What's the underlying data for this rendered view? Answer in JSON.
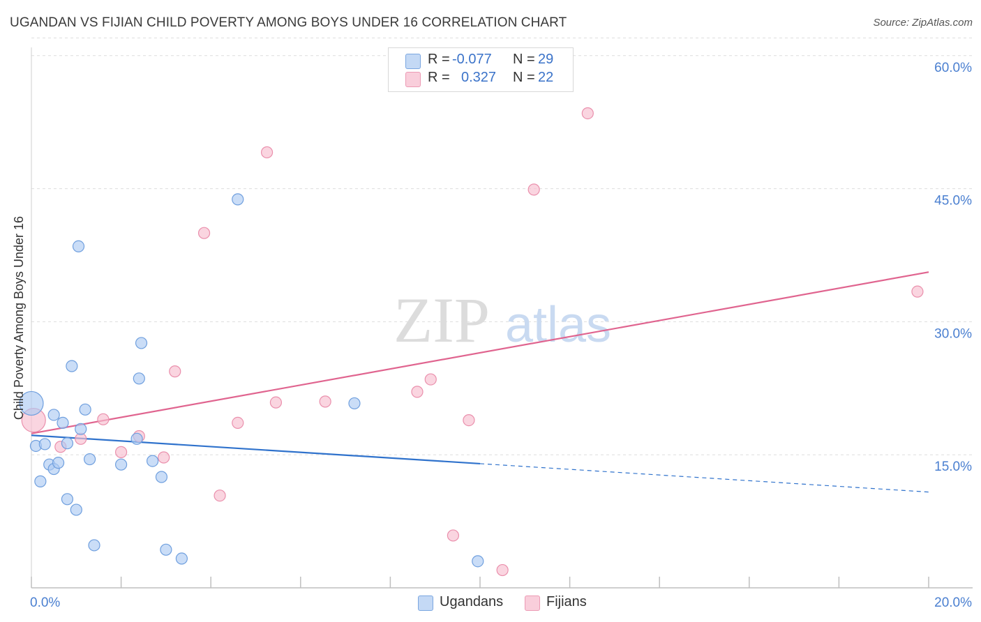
{
  "title": "UGANDAN VS FIJIAN CHILD POVERTY AMONG BOYS UNDER 16 CORRELATION CHART",
  "source": "Source: ZipAtlas.com",
  "watermark": {
    "zip": "ZIP",
    "atlas": "atlas"
  },
  "colors": {
    "blue_fill": "#aecbf2",
    "blue_stroke": "#6f9fde",
    "blue_line": "#2f72cc",
    "pink_fill": "#f7bfd0",
    "pink_stroke": "#ea8fac",
    "pink_line": "#e0648f",
    "tick_text": "#4a7fd0",
    "grid": "#dddddd"
  },
  "legend": {
    "rows": [
      {
        "r_label": "R =",
        "r_value": "-0.077",
        "n_label": "N =",
        "n_value": "29"
      },
      {
        "r_label": "R =",
        "r_value": "0.327",
        "n_label": "N =",
        "n_value": "22"
      }
    ]
  },
  "bottom_legend": {
    "series1": "Ugandans",
    "series2": "Fijians"
  },
  "chart_data": {
    "type": "scatter",
    "title": "UGANDAN VS FIJIAN CHILD POVERTY AMONG BOYS UNDER 16 CORRELATION CHART",
    "xlabel": "",
    "ylabel": "Child Poverty Among Boys Under 16",
    "xlim": [
      0,
      20
    ],
    "ylim": [
      0,
      62
    ],
    "x_tick_labels": [
      "0.0%",
      "20.0%"
    ],
    "y_ticks": [
      15,
      30,
      45,
      60
    ],
    "y_tick_labels": [
      "15.0%",
      "30.0%",
      "45.0%",
      "60.0%"
    ],
    "grid": true,
    "series": [
      {
        "name": "Ugandans",
        "r": -0.077,
        "n": 29,
        "points": [
          {
            "x": 0.0,
            "y": 20.8,
            "big": true
          },
          {
            "x": 0.1,
            "y": 16.0,
            "big": false
          },
          {
            "x": 0.3,
            "y": 16.2,
            "big": false
          },
          {
            "x": 0.2,
            "y": 12.0,
            "big": false
          },
          {
            "x": 0.4,
            "y": 13.9,
            "big": false
          },
          {
            "x": 0.5,
            "y": 13.4,
            "big": false
          },
          {
            "x": 0.5,
            "y": 19.5,
            "big": false
          },
          {
            "x": 0.6,
            "y": 14.1,
            "big": false
          },
          {
            "x": 0.7,
            "y": 18.6,
            "big": false
          },
          {
            "x": 0.8,
            "y": 16.3,
            "big": false
          },
          {
            "x": 0.8,
            "y": 10.0,
            "big": false
          },
          {
            "x": 0.9,
            "y": 25.0,
            "big": false
          },
          {
            "x": 1.0,
            "y": 8.8,
            "big": false
          },
          {
            "x": 1.05,
            "y": 38.5,
            "big": false
          },
          {
            "x": 1.1,
            "y": 17.9,
            "big": false
          },
          {
            "x": 1.2,
            "y": 20.1,
            "big": false
          },
          {
            "x": 1.3,
            "y": 14.5,
            "big": false
          },
          {
            "x": 1.4,
            "y": 4.8,
            "big": false
          },
          {
            "x": 2.0,
            "y": 13.9,
            "big": false
          },
          {
            "x": 2.4,
            "y": 23.6,
            "big": false
          },
          {
            "x": 2.45,
            "y": 27.6,
            "big": false
          },
          {
            "x": 2.35,
            "y": 16.8,
            "big": false
          },
          {
            "x": 2.7,
            "y": 14.3,
            "big": false
          },
          {
            "x": 2.9,
            "y": 12.5,
            "big": false
          },
          {
            "x": 3.0,
            "y": 4.3,
            "big": false
          },
          {
            "x": 3.35,
            "y": 3.3,
            "big": false
          },
          {
            "x": 4.6,
            "y": 43.8,
            "big": false
          },
          {
            "x": 7.2,
            "y": 20.8,
            "big": false
          },
          {
            "x": 9.95,
            "y": 3.0,
            "big": false
          }
        ]
      },
      {
        "name": "Fijians",
        "r": 0.327,
        "n": 22,
        "points": [
          {
            "x": 0.05,
            "y": 18.9,
            "big": true
          },
          {
            "x": 0.65,
            "y": 15.9,
            "big": false
          },
          {
            "x": 1.1,
            "y": 16.8,
            "big": false
          },
          {
            "x": 1.6,
            "y": 19.0,
            "big": false
          },
          {
            "x": 2.0,
            "y": 15.3,
            "big": false
          },
          {
            "x": 2.4,
            "y": 17.1,
            "big": false
          },
          {
            "x": 2.95,
            "y": 14.7,
            "big": false
          },
          {
            "x": 3.2,
            "y": 24.4,
            "big": false
          },
          {
            "x": 3.85,
            "y": 40.0,
            "big": false
          },
          {
            "x": 4.2,
            "y": 10.4,
            "big": false
          },
          {
            "x": 4.6,
            "y": 18.6,
            "big": false
          },
          {
            "x": 5.25,
            "y": 49.1,
            "big": false
          },
          {
            "x": 5.45,
            "y": 20.9,
            "big": false
          },
          {
            "x": 6.55,
            "y": 21.0,
            "big": false
          },
          {
            "x": 8.6,
            "y": 22.1,
            "big": false
          },
          {
            "x": 8.9,
            "y": 23.5,
            "big": false
          },
          {
            "x": 9.4,
            "y": 5.9,
            "big": false
          },
          {
            "x": 9.75,
            "y": 18.9,
            "big": false
          },
          {
            "x": 10.5,
            "y": 2.0,
            "big": false
          },
          {
            "x": 11.2,
            "y": 44.9,
            "big": false
          },
          {
            "x": 12.4,
            "y": 53.5,
            "big": false
          },
          {
            "x": 19.75,
            "y": 33.4,
            "big": false
          }
        ]
      }
    ],
    "trendlines": [
      {
        "series": "Ugandans",
        "solid_from": [
          0,
          17.2
        ],
        "solid_to": [
          10.0,
          14.0
        ],
        "dashed_to": [
          20.0,
          10.8
        ]
      },
      {
        "series": "Fijians",
        "from": [
          0,
          17.4
        ],
        "to": [
          20.0,
          35.6
        ]
      }
    ]
  }
}
